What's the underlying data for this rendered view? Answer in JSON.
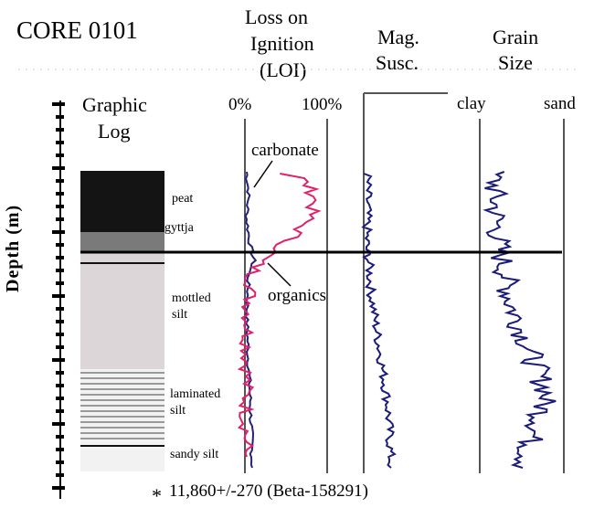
{
  "title": "CORE 0101",
  "y_axis_label": "Depth (m)",
  "columns": {
    "graphic_log": {
      "title_line1": "Graphic",
      "title_line2": "Log"
    },
    "loi": {
      "title_line1": "Loss on",
      "title_line2": "Ignition",
      "title_line3": "(LOI)",
      "tick_left": "0%",
      "tick_right": "100%"
    },
    "mag": {
      "title_line1": "Mag.",
      "title_line2": "Susc."
    },
    "grain": {
      "title_line1": "Grain",
      "title_line2": "Size",
      "tick_left": "clay",
      "tick_right": "sand"
    }
  },
  "units": [
    {
      "label_line1": "peat",
      "label_line2": "",
      "color": "#141414",
      "pattern": "solid"
    },
    {
      "label_line1": "gyttja",
      "label_line2": "",
      "color": "#7a7a7a",
      "pattern": "solid"
    },
    {
      "label_line1": "mottled",
      "label_line2": "silt",
      "color": "#ddd6d8",
      "pattern": "solid"
    },
    {
      "label_line1": "laminated",
      "label_line2": "silt",
      "color": "#f2f2f2",
      "pattern": "laminated"
    },
    {
      "label_line1": "sandy silt",
      "label_line2": "",
      "color": "#f2f2f2",
      "pattern": "solid"
    }
  ],
  "annotations": {
    "carbonate": "carbonate",
    "organics": "organics"
  },
  "date_marker": {
    "symbol": "*",
    "text": "11,860+/-270 (Beta-158291)"
  },
  "colors": {
    "carbonate_curve": "#222277",
    "organics_curve": "#e0206a",
    "mag_curve": "#1c1c7a",
    "grain_curve": "#1c1c7a",
    "axis": "#555555"
  }
}
